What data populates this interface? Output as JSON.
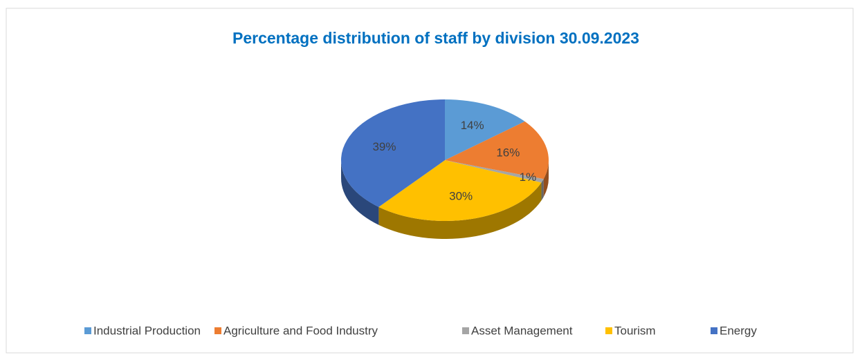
{
  "chart_data": {
    "type": "pie",
    "title": "Percentage distribution of staff by division 30.09.2023",
    "categories": [
      "Industrial Production",
      "Agriculture and Food Industry",
      "Asset Management",
      "Tourism",
      "Energy"
    ],
    "values": [
      14,
      16,
      1,
      30,
      39
    ],
    "value_labels": [
      "14%",
      "16%",
      "1%",
      "30%",
      "39%"
    ],
    "colors": [
      "#5b9bd5",
      "#ed7d31",
      "#a5a5a5",
      "#ffc000",
      "#4472c4"
    ],
    "legend": "bottom"
  }
}
